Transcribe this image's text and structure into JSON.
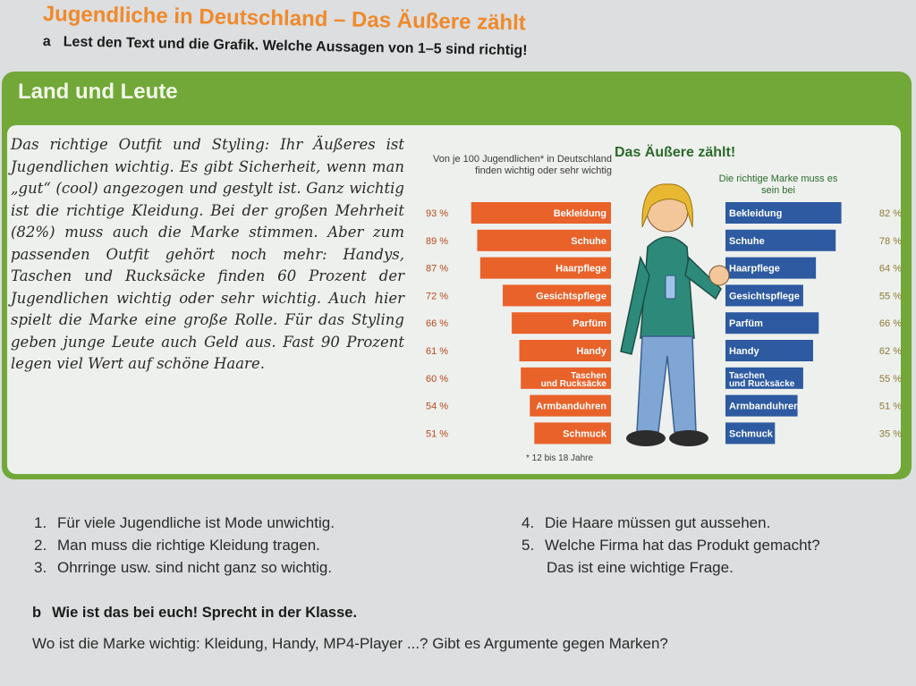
{
  "header": {
    "title": "Jugendliche in Deutschland – Das Äußere zählt",
    "task_a_letter": "a",
    "task_a_text": "Lest den Text und die Grafik. Welche Aussagen von 1–5 sind richtig!"
  },
  "box": {
    "heading": "Land und Leute",
    "text": "Das richtige Outfit und Styling: Ihr Äußeres ist Jugendlichen wichtig. Es gibt Sicherheit, wenn man „gut“ (cool) angezogen und gestylt ist. Ganz wichtig ist die richtige Kleidung. Bei der großen Mehrheit (82%) muss auch die Marke stimmen. Aber zum passenden Outfit gehört noch mehr: Handys, Taschen und Rucksäcke finden 60 Prozent der Jugendlichen wichtig oder sehr wichtig. Auch hier spielt die Marke eine große Rolle. Für das Styling geben junge Leute auch Geld aus. Fast 90 Prozent legen viel Wert auf schöne Haare."
  },
  "chart_data": {
    "type": "bar",
    "title": "Das Äußere zählt!",
    "categories": [
      "Bekleidung",
      "Schuhe",
      "Haarpflege",
      "Gesichtspflege",
      "Parfüm",
      "Handy",
      "Taschen und Rucksäcke",
      "Armbanduhren",
      "Schmuck"
    ],
    "series": [
      {
        "name": "Von je 100 Jugendlichen* in Deutschland finden wichtig oder sehr wichtig",
        "values": [
          93,
          89,
          87,
          72,
          66,
          61,
          60,
          54,
          51
        ],
        "labels": [
          "93 %",
          "89 %",
          "87 %",
          "72 %",
          "66 %",
          "61 %",
          "60 %",
          "54 %",
          "51 %"
        ],
        "color": "#e8622a"
      },
      {
        "name": "Die richtige Marke muss es sein bei",
        "values": [
          82,
          78,
          64,
          55,
          66,
          62,
          55,
          51,
          35
        ],
        "labels": [
          "82 %",
          "78 %",
          "64 %",
          "55 %",
          "66 %",
          "62 %",
          "55 %",
          "51 %",
          "35 %"
        ],
        "color": "#2d5aa0"
      }
    ],
    "footnote": "* 12 bis 18 Jahre"
  },
  "questions": {
    "left": [
      {
        "num": "1.",
        "text": "Für viele Jugendliche ist Mode unwichtig."
      },
      {
        "num": "2.",
        "text": "Man muss die richtige Kleidung tragen."
      },
      {
        "num": "3.",
        "text": "Ohrringe usw. sind nicht ganz so wichtig."
      }
    ],
    "right": [
      {
        "num": "4.",
        "text": "Die Haare müssen gut aussehen."
      },
      {
        "num": "5.",
        "text": "Welche Firma hat das Produkt gemacht?"
      }
    ],
    "right_continuation": "Das ist eine wichtige Frage."
  },
  "task_b": {
    "letter": "b",
    "heading": "Wie ist das bei euch! Sprecht in der Klasse.",
    "text": "Wo ist die Marke wichtig: Kleidung, Handy, MP4-Player ...? Gibt es Argumente gegen Marken?"
  },
  "colors": {
    "title_orange": "#f0892b",
    "box_green": "#71a838",
    "bar_orange": "#e8622a",
    "bar_blue": "#2d5aa0",
    "chart_title_green": "#2b6a2b"
  }
}
